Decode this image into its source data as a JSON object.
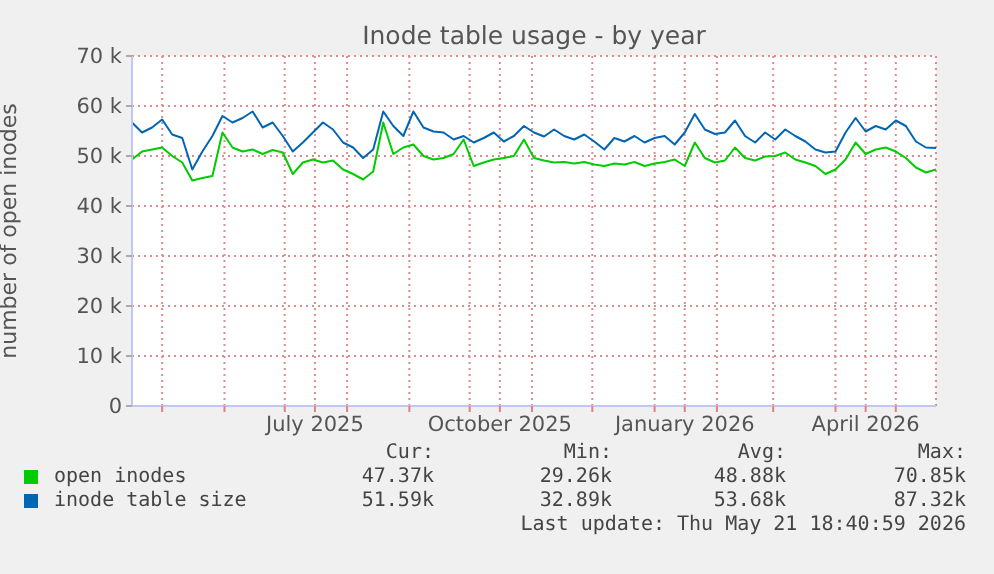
{
  "chart_data": {
    "type": "line",
    "title": "Inode table usage - by year",
    "ylabel": "number of open inodes",
    "x": [
      "2025-04-16",
      "2025-04-21",
      "2025-04-26",
      "2025-05-01",
      "2025-05-06",
      "2025-05-11",
      "2025-05-16",
      "2025-05-21",
      "2025-05-26",
      "2025-05-31",
      "2025-06-05",
      "2025-06-10",
      "2025-06-15",
      "2025-06-20",
      "2025-06-25",
      "2025-06-30",
      "2025-07-05",
      "2025-07-10",
      "2025-07-15",
      "2025-07-20",
      "2025-07-25",
      "2025-07-30",
      "2025-08-04",
      "2025-08-09",
      "2025-08-14",
      "2025-08-19",
      "2025-08-24",
      "2025-08-29",
      "2025-09-03",
      "2025-09-08",
      "2025-09-13",
      "2025-09-18",
      "2025-09-23",
      "2025-09-28",
      "2025-10-03",
      "2025-10-08",
      "2025-10-13",
      "2025-10-18",
      "2025-10-23",
      "2025-10-28",
      "2025-11-02",
      "2025-11-07",
      "2025-11-12",
      "2025-11-17",
      "2025-11-22",
      "2025-11-27",
      "2025-12-02",
      "2025-12-07",
      "2025-12-12",
      "2025-12-17",
      "2025-12-22",
      "2025-12-27",
      "2026-01-01",
      "2026-01-06",
      "2026-01-11",
      "2026-01-16",
      "2026-01-21",
      "2026-01-26",
      "2026-01-31",
      "2026-02-05",
      "2026-02-10",
      "2026-02-15",
      "2026-02-20",
      "2026-02-25",
      "2026-03-02",
      "2026-03-07",
      "2026-03-12",
      "2026-03-17",
      "2026-03-22",
      "2026-03-27",
      "2026-04-01",
      "2026-04-06",
      "2026-04-11",
      "2026-04-16",
      "2026-04-21",
      "2026-04-26",
      "2026-05-01",
      "2026-05-06",
      "2026-05-11",
      "2026-05-16",
      "2026-05-21"
    ],
    "series": [
      {
        "name": "open inodes",
        "color": "#00cc00",
        "values": [
          49300,
          50900,
          51300,
          51700,
          50000,
          48700,
          45100,
          45600,
          46000,
          54700,
          51700,
          50900,
          51300,
          50400,
          51200,
          50700,
          46400,
          48700,
          49300,
          48700,
          49100,
          47300,
          46400,
          45300,
          46900,
          56700,
          50400,
          51700,
          52300,
          50000,
          49300,
          49600,
          50400,
          53300,
          48000,
          48700,
          49300,
          49600,
          50000,
          53300,
          49600,
          49100,
          48700,
          48800,
          48500,
          48800,
          48300,
          48000,
          48500,
          48300,
          48800,
          48000,
          48500,
          48800,
          49300,
          48000,
          52700,
          49600,
          48700,
          49100,
          51700,
          49600,
          49100,
          49900,
          50000,
          50700,
          49300,
          48700,
          48000,
          46400,
          47300,
          49300,
          52700,
          50400,
          51300,
          51700,
          50900,
          49600,
          47700,
          46700,
          47300
        ]
      },
      {
        "name": "inode table size",
        "color": "#0066b3",
        "values": [
          56700,
          54700,
          55700,
          57300,
          54300,
          53600,
          47300,
          50900,
          54000,
          58000,
          56700,
          57600,
          58900,
          55700,
          56700,
          54000,
          50900,
          52700,
          54700,
          56700,
          55300,
          52700,
          51700,
          49600,
          51300,
          58900,
          56000,
          54000,
          58900,
          55700,
          54900,
          54700,
          53300,
          54000,
          52700,
          53600,
          54700,
          52900,
          54000,
          56000,
          54700,
          53900,
          55300,
          54000,
          53300,
          54300,
          52900,
          51300,
          53600,
          52900,
          54000,
          52700,
          53600,
          54000,
          52300,
          54700,
          58400,
          55300,
          54400,
          54700,
          57100,
          54000,
          52700,
          54700,
          53300,
          55300,
          54000,
          52900,
          51300,
          50700,
          50900,
          54700,
          57600,
          54900,
          56000,
          55300,
          57100,
          56000,
          52900,
          51700,
          51600
        ]
      }
    ],
    "xlim": [
      "2025-04-16",
      "2026-05-21"
    ],
    "xticks": [
      {
        "value": "2025-05-01",
        "label": null
      },
      {
        "value": "2025-06-01",
        "label": null
      },
      {
        "value": "2025-07-01",
        "label": null
      },
      {
        "value": "2025-07-16",
        "label": "July 2025"
      },
      {
        "value": "2025-08-01",
        "label": null
      },
      {
        "value": "2025-09-01",
        "label": null
      },
      {
        "value": "2025-10-01",
        "label": null
      },
      {
        "value": "2025-10-16",
        "label": "October 2025"
      },
      {
        "value": "2025-11-01",
        "label": null
      },
      {
        "value": "2025-12-01",
        "label": null
      },
      {
        "value": "2026-01-01",
        "label": null
      },
      {
        "value": "2026-01-16",
        "label": "January 2026"
      },
      {
        "value": "2026-02-01",
        "label": null
      },
      {
        "value": "2026-03-01",
        "label": null
      },
      {
        "value": "2026-04-01",
        "label": null
      },
      {
        "value": "2026-04-16",
        "label": "April 2026"
      },
      {
        "value": "2026-05-01",
        "label": null
      }
    ],
    "ylim": [
      0,
      70000
    ],
    "yticks": [
      {
        "value": 0,
        "label": "0"
      },
      {
        "value": 10000,
        "label": "10 k"
      },
      {
        "value": 20000,
        "label": "20 k"
      },
      {
        "value": 30000,
        "label": "30 k"
      },
      {
        "value": 40000,
        "label": "40 k"
      },
      {
        "value": 50000,
        "label": "50 k"
      },
      {
        "value": 60000,
        "label": "60 k"
      },
      {
        "value": 70000,
        "label": "70 k"
      }
    ],
    "grid": true,
    "legend": "bottom left",
    "marker": "none",
    "line_style": "solid",
    "annotations": [
      "Cur:",
      "Min:",
      "Avg:",
      "Max:",
      "47.37k",
      "29.26k",
      "48.88k",
      "70.85k",
      "51.59k",
      "32.89k",
      "53.68k",
      "87.32k",
      "Last update: Thu May 21 18:40:59 2026"
    ]
  }
}
